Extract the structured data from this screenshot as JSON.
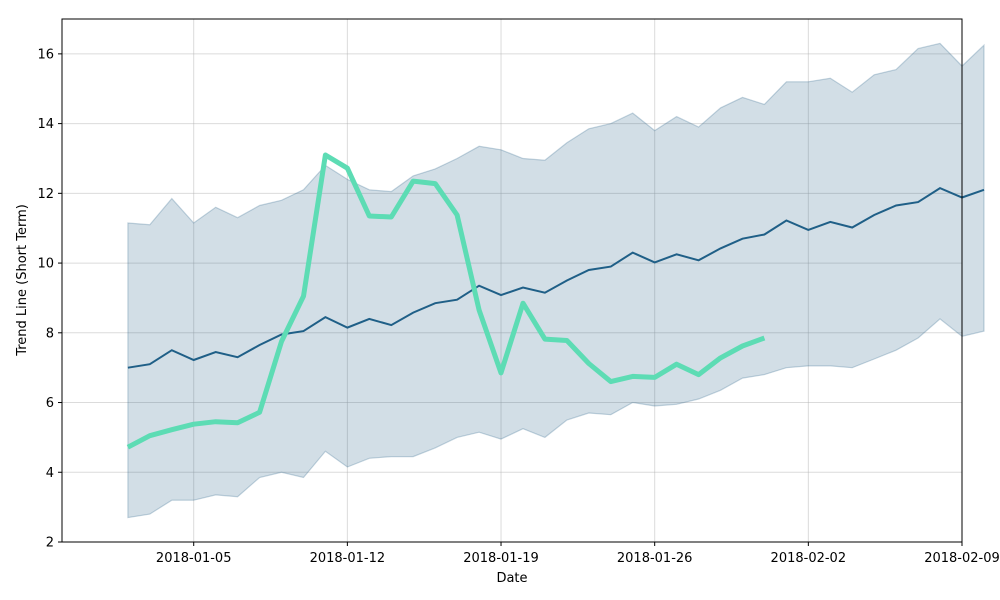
{
  "chart_data": {
    "type": "line",
    "xlabel": "Date",
    "ylabel": "Trend Line (Short Term)",
    "x_start": "2018-01-02",
    "xlim": [
      "2017-12-30",
      "2018-02-09"
    ],
    "ylim": [
      2,
      17
    ],
    "x_ticks": [
      "2018-01-05",
      "2018-01-12",
      "2018-01-19",
      "2018-01-26",
      "2018-02-02",
      "2018-02-09"
    ],
    "y_ticks": [
      2,
      4,
      6,
      8,
      10,
      12,
      14,
      16
    ],
    "grid": true,
    "colors": {
      "band": "#1f5a84",
      "trend": "#1f5f87",
      "actual": "#5ddcb4"
    },
    "band": {
      "upper": [
        11.15,
        11.1,
        11.85,
        11.15,
        11.6,
        11.3,
        11.65,
        11.8,
        12.1,
        12.8,
        12.4,
        12.1,
        12.05,
        12.5,
        12.7,
        13.0,
        13.35,
        13.25,
        13.0,
        12.95,
        13.45,
        13.85,
        14.0,
        14.3,
        13.8,
        14.2,
        13.9,
        14.45,
        14.75,
        14.55,
        15.2,
        15.2,
        15.3,
        14.9,
        15.4,
        15.55,
        16.15,
        16.3,
        15.65,
        16.25
      ],
      "lower": [
        2.7,
        2.8,
        3.2,
        3.2,
        3.35,
        3.3,
        3.85,
        4.0,
        3.85,
        4.6,
        4.15,
        4.4,
        4.45,
        4.45,
        4.7,
        5.0,
        5.15,
        4.95,
        5.25,
        5.0,
        5.5,
        5.7,
        5.65,
        6.0,
        5.9,
        5.95,
        6.1,
        6.35,
        6.7,
        6.8,
        7.0,
        7.05,
        7.05,
        7.0,
        7.25,
        7.5,
        7.85,
        8.4,
        7.9,
        8.05
      ]
    },
    "series": [
      {
        "values": [
          7.0,
          7.1,
          7.5,
          7.22,
          7.45,
          7.3,
          7.65,
          7.95,
          8.05,
          8.45,
          8.15,
          8.4,
          8.22,
          8.58,
          8.85,
          8.95,
          9.35,
          9.08,
          9.3,
          9.15,
          9.5,
          9.8,
          9.9,
          10.3,
          10.02,
          10.25,
          10.08,
          10.42,
          10.7,
          10.82,
          11.22,
          10.95,
          11.18,
          11.02,
          11.38,
          11.65,
          11.75,
          12.15,
          11.88,
          12.1
        ]
      },
      {
        "values": [
          4.72,
          5.05,
          5.22,
          5.38,
          5.45,
          5.42,
          5.72,
          7.75,
          9.05,
          13.1,
          12.72,
          11.35,
          11.32,
          12.35,
          12.28,
          11.38,
          8.65,
          6.85,
          8.85,
          7.82,
          7.78,
          7.12,
          6.6,
          6.75,
          6.72,
          7.1,
          6.8,
          7.28,
          7.62,
          7.85
        ]
      }
    ]
  }
}
